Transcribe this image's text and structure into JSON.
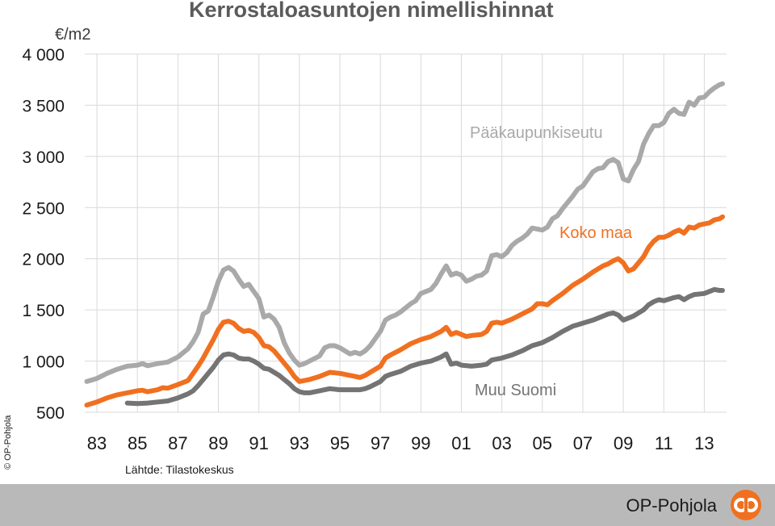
{
  "chart_data": {
    "type": "line",
    "title": "Kerrostaloasuntojen nimellishinnat",
    "ylabel": "€/m2",
    "xlabel": "",
    "ylim": [
      500,
      4000
    ],
    "xlim": [
      1982.4,
      2014.1
    ],
    "yticks": [
      500,
      1000,
      1500,
      2000,
      2500,
      3000,
      3500,
      4000
    ],
    "ytick_labels": [
      "500",
      "1 000",
      "1 500",
      "2 000",
      "2 500",
      "3 000",
      "3 500",
      "4 000"
    ],
    "xticks": [
      1983,
      1985,
      1987,
      1989,
      1991,
      1993,
      1995,
      1997,
      1999,
      2001,
      2003,
      2005,
      2007,
      2009,
      2011,
      2013
    ],
    "xtick_labels": [
      "83",
      "85",
      "87",
      "89",
      "91",
      "93",
      "95",
      "97",
      "99",
      "01",
      "03",
      "05",
      "07",
      "09",
      "11",
      "13"
    ],
    "grid": true,
    "legend": "inline labels",
    "series": [
      {
        "name": "Pääkaupunkiseutu",
        "color": "#a9a9a9",
        "points": [
          [
            1982.5,
            800
          ],
          [
            1983,
            830
          ],
          [
            1983.5,
            880
          ],
          [
            1984,
            920
          ],
          [
            1984.5,
            950
          ],
          [
            1985,
            960
          ],
          [
            1985.25,
            975
          ],
          [
            1985.5,
            955
          ],
          [
            1986,
            975
          ],
          [
            1986.5,
            990
          ],
          [
            1987,
            1040
          ],
          [
            1987.5,
            1120
          ],
          [
            1987.75,
            1190
          ],
          [
            1988,
            1280
          ],
          [
            1988.25,
            1460
          ],
          [
            1988.5,
            1490
          ],
          [
            1988.75,
            1630
          ],
          [
            1989,
            1780
          ],
          [
            1989.25,
            1890
          ],
          [
            1989.5,
            1915
          ],
          [
            1989.75,
            1880
          ],
          [
            1990,
            1800
          ],
          [
            1990.25,
            1730
          ],
          [
            1990.5,
            1750
          ],
          [
            1990.75,
            1680
          ],
          [
            1991,
            1610
          ],
          [
            1991.25,
            1430
          ],
          [
            1991.5,
            1450
          ],
          [
            1991.75,
            1410
          ],
          [
            1992,
            1330
          ],
          [
            1992.25,
            1180
          ],
          [
            1992.5,
            1080
          ],
          [
            1992.75,
            1010
          ],
          [
            1993,
            960
          ],
          [
            1993.25,
            975
          ],
          [
            1993.5,
            1000
          ],
          [
            1994,
            1050
          ],
          [
            1994.25,
            1130
          ],
          [
            1994.5,
            1150
          ],
          [
            1994.75,
            1150
          ],
          [
            1995,
            1130
          ],
          [
            1995.25,
            1100
          ],
          [
            1995.5,
            1070
          ],
          [
            1995.75,
            1085
          ],
          [
            1996,
            1070
          ],
          [
            1996.25,
            1100
          ],
          [
            1996.5,
            1150
          ],
          [
            1997,
            1290
          ],
          [
            1997.25,
            1400
          ],
          [
            1997.5,
            1430
          ],
          [
            1997.75,
            1450
          ],
          [
            1998,
            1480
          ],
          [
            1998.5,
            1560
          ],
          [
            1998.75,
            1590
          ],
          [
            1999,
            1660
          ],
          [
            1999.5,
            1700
          ],
          [
            1999.75,
            1760
          ],
          [
            2000,
            1850
          ],
          [
            2000.25,
            1930
          ],
          [
            2000.5,
            1840
          ],
          [
            2000.75,
            1860
          ],
          [
            2001,
            1840
          ],
          [
            2001.25,
            1780
          ],
          [
            2001.5,
            1800
          ],
          [
            2001.75,
            1830
          ],
          [
            2002,
            1840
          ],
          [
            2002.25,
            1880
          ],
          [
            2002.5,
            2030
          ],
          [
            2002.75,
            2040
          ],
          [
            2003,
            2020
          ],
          [
            2003.25,
            2060
          ],
          [
            2003.5,
            2130
          ],
          [
            2003.75,
            2170
          ],
          [
            2004,
            2200
          ],
          [
            2004.25,
            2240
          ],
          [
            2004.5,
            2300
          ],
          [
            2004.75,
            2290
          ],
          [
            2005,
            2280
          ],
          [
            2005.25,
            2310
          ],
          [
            2005.5,
            2390
          ],
          [
            2005.75,
            2420
          ],
          [
            2006,
            2490
          ],
          [
            2006.5,
            2610
          ],
          [
            2006.75,
            2680
          ],
          [
            2007,
            2710
          ],
          [
            2007.25,
            2780
          ],
          [
            2007.5,
            2850
          ],
          [
            2007.75,
            2880
          ],
          [
            2008,
            2890
          ],
          [
            2008.25,
            2950
          ],
          [
            2008.5,
            2970
          ],
          [
            2008.75,
            2940
          ],
          [
            2009,
            2780
          ],
          [
            2009.25,
            2760
          ],
          [
            2009.5,
            2870
          ],
          [
            2009.75,
            2950
          ],
          [
            2010,
            3120
          ],
          [
            2010.25,
            3220
          ],
          [
            2010.5,
            3300
          ],
          [
            2010.75,
            3300
          ],
          [
            2011,
            3330
          ],
          [
            2011.25,
            3420
          ],
          [
            2011.5,
            3460
          ],
          [
            2011.75,
            3420
          ],
          [
            2012,
            3410
          ],
          [
            2012.25,
            3530
          ],
          [
            2012.5,
            3500
          ],
          [
            2012.75,
            3570
          ],
          [
            2013,
            3580
          ],
          [
            2013.25,
            3630
          ],
          [
            2013.5,
            3670
          ],
          [
            2013.75,
            3700
          ],
          [
            2013.9,
            3710
          ]
        ]
      },
      {
        "name": "Koko maa",
        "color": "#f07020",
        "points": [
          [
            1982.5,
            570
          ],
          [
            1983,
            600
          ],
          [
            1983.5,
            640
          ],
          [
            1984,
            670
          ],
          [
            1984.5,
            690
          ],
          [
            1985,
            710
          ],
          [
            1985.25,
            715
          ],
          [
            1985.5,
            700
          ],
          [
            1986,
            720
          ],
          [
            1986.25,
            740
          ],
          [
            1986.5,
            735
          ],
          [
            1987,
            770
          ],
          [
            1987.5,
            810
          ],
          [
            1987.75,
            880
          ],
          [
            1988,
            950
          ],
          [
            1988.25,
            1030
          ],
          [
            1988.5,
            1120
          ],
          [
            1988.75,
            1210
          ],
          [
            1989,
            1310
          ],
          [
            1989.25,
            1380
          ],
          [
            1989.5,
            1390
          ],
          [
            1989.75,
            1370
          ],
          [
            1990,
            1320
          ],
          [
            1990.25,
            1290
          ],
          [
            1990.5,
            1300
          ],
          [
            1990.75,
            1280
          ],
          [
            1991,
            1230
          ],
          [
            1991.25,
            1150
          ],
          [
            1991.5,
            1140
          ],
          [
            1991.75,
            1100
          ],
          [
            1992,
            1040
          ],
          [
            1992.25,
            980
          ],
          [
            1992.5,
            920
          ],
          [
            1992.75,
            850
          ],
          [
            1993,
            800
          ],
          [
            1993.25,
            810
          ],
          [
            1993.5,
            820
          ],
          [
            1994,
            850
          ],
          [
            1994.25,
            870
          ],
          [
            1994.5,
            890
          ],
          [
            1995,
            880
          ],
          [
            1995.5,
            860
          ],
          [
            1995.75,
            850
          ],
          [
            1996,
            840
          ],
          [
            1996.25,
            860
          ],
          [
            1996.5,
            890
          ],
          [
            1997,
            950
          ],
          [
            1997.25,
            1030
          ],
          [
            1997.5,
            1060
          ],
          [
            1998,
            1110
          ],
          [
            1998.5,
            1170
          ],
          [
            1999,
            1210
          ],
          [
            1999.5,
            1240
          ],
          [
            2000,
            1290
          ],
          [
            2000.25,
            1330
          ],
          [
            2000.5,
            1260
          ],
          [
            2000.75,
            1280
          ],
          [
            2001,
            1260
          ],
          [
            2001.25,
            1240
          ],
          [
            2001.5,
            1250
          ],
          [
            2002,
            1260
          ],
          [
            2002.25,
            1290
          ],
          [
            2002.5,
            1370
          ],
          [
            2002.75,
            1380
          ],
          [
            2003,
            1370
          ],
          [
            2003.5,
            1410
          ],
          [
            2004,
            1460
          ],
          [
            2004.5,
            1510
          ],
          [
            2004.75,
            1560
          ],
          [
            2005,
            1560
          ],
          [
            2005.25,
            1550
          ],
          [
            2005.5,
            1590
          ],
          [
            2006,
            1660
          ],
          [
            2006.5,
            1740
          ],
          [
            2007,
            1800
          ],
          [
            2007.5,
            1870
          ],
          [
            2008,
            1930
          ],
          [
            2008.25,
            1950
          ],
          [
            2008.5,
            1980
          ],
          [
            2008.75,
            2000
          ],
          [
            2009,
            1960
          ],
          [
            2009.25,
            1880
          ],
          [
            2009.5,
            1900
          ],
          [
            2009.75,
            1960
          ],
          [
            2010,
            2020
          ],
          [
            2010.25,
            2110
          ],
          [
            2010.5,
            2170
          ],
          [
            2010.75,
            2210
          ],
          [
            2011,
            2210
          ],
          [
            2011.25,
            2230
          ],
          [
            2011.5,
            2260
          ],
          [
            2011.75,
            2280
          ],
          [
            2012,
            2250
          ],
          [
            2012.25,
            2310
          ],
          [
            2012.5,
            2300
          ],
          [
            2012.75,
            2330
          ],
          [
            2013,
            2340
          ],
          [
            2013.25,
            2350
          ],
          [
            2013.5,
            2380
          ],
          [
            2013.75,
            2390
          ],
          [
            2013.9,
            2410
          ]
        ]
      },
      {
        "name": "Muu Suomi",
        "color": "#747474",
        "points": [
          [
            1984.5,
            590
          ],
          [
            1985,
            585
          ],
          [
            1985.5,
            590
          ],
          [
            1986,
            600
          ],
          [
            1986.5,
            610
          ],
          [
            1987,
            640
          ],
          [
            1987.5,
            680
          ],
          [
            1987.75,
            710
          ],
          [
            1988,
            760
          ],
          [
            1988.25,
            820
          ],
          [
            1988.5,
            880
          ],
          [
            1988.75,
            940
          ],
          [
            1989,
            1010
          ],
          [
            1989.25,
            1060
          ],
          [
            1989.5,
            1070
          ],
          [
            1989.75,
            1060
          ],
          [
            1990,
            1030
          ],
          [
            1990.25,
            1020
          ],
          [
            1990.5,
            1020
          ],
          [
            1990.75,
            1000
          ],
          [
            1991,
            970
          ],
          [
            1991.25,
            930
          ],
          [
            1991.5,
            920
          ],
          [
            1991.75,
            890
          ],
          [
            1992,
            860
          ],
          [
            1992.25,
            820
          ],
          [
            1992.5,
            780
          ],
          [
            1992.75,
            730
          ],
          [
            1993,
            700
          ],
          [
            1993.25,
            690
          ],
          [
            1993.5,
            690
          ],
          [
            1994,
            710
          ],
          [
            1994.25,
            720
          ],
          [
            1994.5,
            730
          ],
          [
            1995,
            720
          ],
          [
            1995.5,
            720
          ],
          [
            1996,
            720
          ],
          [
            1996.25,
            730
          ],
          [
            1996.5,
            750
          ],
          [
            1997,
            800
          ],
          [
            1997.25,
            850
          ],
          [
            1997.5,
            870
          ],
          [
            1998,
            900
          ],
          [
            1998.5,
            950
          ],
          [
            1999,
            980
          ],
          [
            1999.5,
            1000
          ],
          [
            2000,
            1040
          ],
          [
            2000.25,
            1070
          ],
          [
            2000.5,
            970
          ],
          [
            2000.75,
            980
          ],
          [
            2001,
            960
          ],
          [
            2001.5,
            950
          ],
          [
            2002,
            960
          ],
          [
            2002.25,
            970
          ],
          [
            2002.5,
            1010
          ],
          [
            2003,
            1030
          ],
          [
            2003.5,
            1060
          ],
          [
            2004,
            1100
          ],
          [
            2004.5,
            1150
          ],
          [
            2005,
            1180
          ],
          [
            2005.5,
            1230
          ],
          [
            2006,
            1290
          ],
          [
            2006.5,
            1340
          ],
          [
            2007,
            1370
          ],
          [
            2007.5,
            1400
          ],
          [
            2008,
            1440
          ],
          [
            2008.25,
            1460
          ],
          [
            2008.5,
            1470
          ],
          [
            2008.75,
            1450
          ],
          [
            2009,
            1400
          ],
          [
            2009.25,
            1420
          ],
          [
            2009.5,
            1440
          ],
          [
            2010,
            1500
          ],
          [
            2010.25,
            1550
          ],
          [
            2010.5,
            1580
          ],
          [
            2010.75,
            1600
          ],
          [
            2011,
            1590
          ],
          [
            2011.5,
            1620
          ],
          [
            2011.75,
            1630
          ],
          [
            2012,
            1600
          ],
          [
            2012.25,
            1630
          ],
          [
            2012.5,
            1650
          ],
          [
            2013,
            1660
          ],
          [
            2013.25,
            1680
          ],
          [
            2013.5,
            1700
          ],
          [
            2013.75,
            1690
          ],
          [
            2013.9,
            1690
          ]
        ]
      }
    ]
  },
  "source": "Lähtde: Tilastokeskus",
  "copyright": "© OP-Pohjola",
  "brand": {
    "name": "OP-Pohjola",
    "logo_color": "#f07020"
  }
}
